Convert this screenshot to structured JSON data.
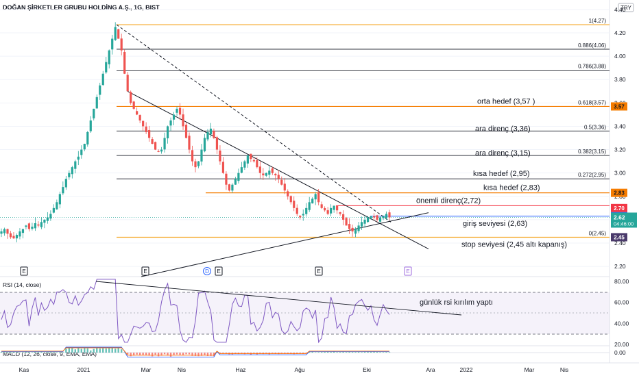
{
  "header": {
    "title": "DOĞAN ŞİRKETLER GRUBU HOLDİNG A.Ş., 1G, BIST",
    "currency": "TRY"
  },
  "chart_data": {
    "type": "candlestick",
    "title": "DOĞAN ŞİRKETLER GRUBU HOLDİNG A.Ş., 1G, BIST",
    "x_ticks": [
      "Kas",
      "2021",
      "Mar",
      "Nis",
      "Haz",
      "Ağu",
      "Eki",
      "Ara",
      "2022",
      "Mar",
      "Nis"
    ],
    "y_ticks": [
      "4.40",
      "4.20",
      "4.00",
      "3.80",
      "3.60",
      "3.40",
      "3.20",
      "3.00",
      "2.80",
      "2.60",
      "2.40",
      "2.20"
    ],
    "ylim": [
      2.18,
      4.45
    ],
    "fib_levels": [
      {
        "label": "1(4.27)",
        "value": 4.27,
        "color": "#f5a623"
      },
      {
        "label": "0.886(4.06)",
        "value": 4.06,
        "color": "#131722"
      },
      {
        "label": "0.786(3.88)",
        "value": 3.88,
        "color": "#131722"
      },
      {
        "label": "0.618(3.57)",
        "value": 3.57,
        "color": "#f57c00"
      },
      {
        "label": "0.5(3.36)",
        "value": 3.36,
        "color": "#131722"
      },
      {
        "label": "0.382(3.15)",
        "value": 3.15,
        "color": "#131722"
      },
      {
        "label": "0.272(2.95)",
        "value": 2.95,
        "color": "#131722"
      },
      {
        "label": "0(2.45)",
        "value": 2.45,
        "color": "#f5a623"
      }
    ],
    "annotations": [
      {
        "text": "orta hedef  (3,57 )",
        "value": 3.57
      },
      {
        "text": "ara direnç (3,36)",
        "value": 3.36
      },
      {
        "text": "ara direnç (3,15)",
        "value": 3.15
      },
      {
        "text": "kısa hedef  (2,95)",
        "value": 2.95
      },
      {
        "text": "kısa hedef  (2,83)",
        "value": 2.83
      },
      {
        "text": "önemli direnç(2,72)",
        "value": 2.72
      },
      {
        "text": "giriş seviyesi (2,63)",
        "value": 2.63
      },
      {
        "text": "stop seviyesi (2,45 altı kapanış)",
        "value": 2.45
      }
    ],
    "price_badges": [
      {
        "text": "3.57",
        "value": 3.57,
        "bg": "#f57c00",
        "fg": "#131722"
      },
      {
        "text": "2.83",
        "value": 2.83,
        "bg": "#f57c00",
        "fg": "#131722"
      },
      {
        "text": "2.70",
        "value": 2.7,
        "bg": "#f23645",
        "fg": "#ffffff"
      },
      {
        "text": "2.63",
        "value": 2.63,
        "bg": "#2962ff",
        "fg": "#ffffff"
      },
      {
        "text": "2.45",
        "value": 2.45,
        "bg": "#4a3a6b",
        "fg": "#ffffff"
      }
    ],
    "last_price": {
      "price": "2.62",
      "timer": "04:46:00",
      "value": 2.62,
      "color": "#26a69a"
    },
    "event_markers": [
      "E",
      "E",
      "D",
      "E",
      "E",
      "E"
    ],
    "close_series": [
      2.5,
      2.52,
      2.48,
      2.45,
      2.44,
      2.47,
      2.5,
      2.52,
      2.55,
      2.52,
      2.54,
      2.57,
      2.55,
      2.58,
      2.6,
      2.62,
      2.65,
      2.7,
      2.75,
      2.82,
      2.88,
      2.95,
      3.0,
      3.05,
      3.1,
      3.14,
      3.2,
      3.25,
      3.35,
      3.45,
      3.55,
      3.65,
      3.75,
      3.85,
      3.95,
      4.05,
      4.15,
      4.25,
      4.15,
      4.05,
      3.85,
      3.7,
      3.6,
      3.55,
      3.5,
      3.45,
      3.4,
      3.35,
      3.3,
      3.25,
      3.2,
      3.18,
      3.2,
      3.3,
      3.4,
      3.45,
      3.5,
      3.55,
      3.5,
      3.4,
      3.3,
      3.2,
      3.1,
      3.05,
      3.1,
      3.2,
      3.3,
      3.35,
      3.38,
      3.3,
      3.2,
      3.1,
      3.0,
      2.9,
      2.85,
      2.9,
      2.95,
      3.0,
      3.05,
      3.1,
      3.15,
      3.12,
      3.1,
      3.05,
      3.0,
      2.98,
      3.0,
      3.02,
      3.0,
      2.98,
      2.95,
      2.9,
      2.85,
      2.8,
      2.75,
      2.7,
      2.65,
      2.62,
      2.65,
      2.7,
      2.75,
      2.78,
      2.82,
      2.75,
      2.7,
      2.68,
      2.65,
      2.7,
      2.72,
      2.68,
      2.65,
      2.6,
      2.55,
      2.52,
      2.5,
      2.52,
      2.55,
      2.58,
      2.6,
      2.62,
      2.63,
      2.62,
      2.6,
      2.62,
      2.63,
      2.65,
      2.62
    ],
    "rsi": {
      "label": "RSI (14, close)",
      "y_ticks": [
        "80.00",
        "60.00",
        "40.00",
        "20.00"
      ],
      "upper": 70,
      "middle": 50,
      "lower": 30,
      "annotation": "günlük rsi kırılım yaptı"
    },
    "macd": {
      "label": "MACD (12, 26, close, 9, EMA, EMA)",
      "y_ticks": [
        "0.00"
      ]
    }
  }
}
